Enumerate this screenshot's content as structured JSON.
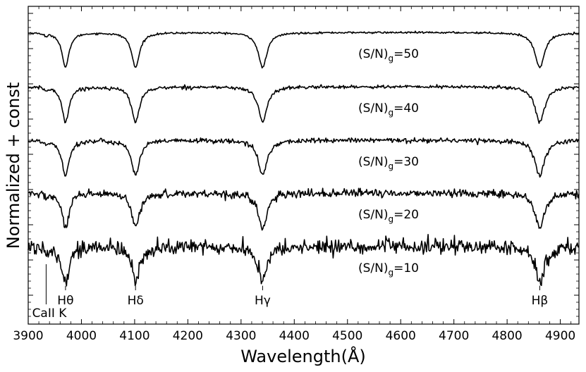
{
  "chart_data": {
    "type": "line",
    "title": "",
    "xlabel": "Wavelength(Å)",
    "ylabel": "Normalized + const",
    "xlim": [
      3900,
      4935
    ],
    "y_ticks_labeled": false,
    "grid": false,
    "xticks": [
      3900,
      4000,
      4100,
      4200,
      4300,
      4400,
      4500,
      4600,
      4700,
      4800,
      4900
    ],
    "series": [
      {
        "name": "(S/N)g=50",
        "label_base": "(S/N)",
        "label_sub": "g",
        "label_value": "=50",
        "noise": 0.006
      },
      {
        "name": "(S/N)g=40",
        "label_base": "(S/N)",
        "label_sub": "g",
        "label_value": "=40",
        "noise": 0.011
      },
      {
        "name": "(S/N)g=30",
        "label_base": "(S/N)",
        "label_sub": "g",
        "label_value": "=30",
        "noise": 0.016
      },
      {
        "name": "(S/N)g=20",
        "label_base": "(S/N)",
        "label_sub": "g",
        "label_value": "=20",
        "noise": 0.026
      },
      {
        "name": "(S/N)g=10",
        "label_base": "(S/N)",
        "label_sub": "g",
        "label_value": "=10",
        "noise": 0.05
      }
    ],
    "lines": [
      {
        "label": "CaII K",
        "wavelength": 3933.7,
        "depth": 0.04,
        "width": 3
      },
      {
        "label": "Hθ",
        "wavelength": 3970.1,
        "depth": 0.45,
        "width": 8
      },
      {
        "label": "Hδ",
        "wavelength": 4101.7,
        "depth": 0.45,
        "width": 9
      },
      {
        "label": "Hγ",
        "wavelength": 4340.5,
        "depth": 0.45,
        "width": 10
      },
      {
        "label": "Hβ",
        "wavelength": 4861.3,
        "depth": 0.45,
        "width": 11
      }
    ]
  }
}
